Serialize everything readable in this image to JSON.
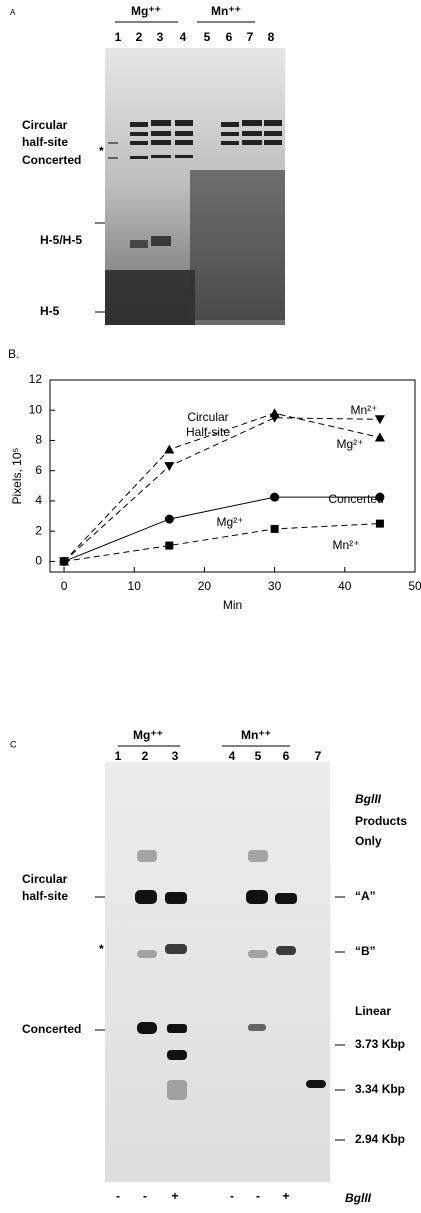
{
  "panel_a": {
    "label": "A",
    "groups": [
      "Mg⁺⁺",
      "Mn⁺⁺"
    ],
    "lanes": [
      "1",
      "2",
      "3",
      "4",
      "5",
      "6",
      "7",
      "8"
    ],
    "bands": [
      [
        "Circular",
        "half-site"
      ],
      [
        "Concerted"
      ],
      [
        "H-5/H-5"
      ],
      [
        "H-5"
      ]
    ],
    "star": "*"
  },
  "chart_data": {
    "type": "line",
    "panel_label": "B.",
    "x_label": "Min",
    "y_label": "Pixels, 10⁵",
    "x": [
      0,
      15,
      30,
      45
    ],
    "xlim": [
      -2,
      50
    ],
    "xticks": [
      0,
      10,
      20,
      30,
      40,
      50
    ],
    "ylim": [
      -0.7,
      12
    ],
    "yticks": [
      0,
      2,
      4,
      6,
      8,
      10,
      12
    ],
    "annotations": [
      "Circular",
      "Half-site",
      "Concerted"
    ],
    "series": [
      {
        "name": "Mg²⁺",
        "color": "#000000",
        "marker": "triangle-up",
        "dashed": true,
        "values": [
          0,
          7.4,
          9.8,
          8.2
        ]
      },
      {
        "name": "Mn²⁺",
        "color": "#000000",
        "marker": "triangle-down",
        "dashed": true,
        "values": [
          0,
          6.3,
          9.5,
          9.4
        ]
      },
      {
        "name": "Mg²⁺",
        "color": "#000000",
        "marker": "circle",
        "dashed": false,
        "values": [
          0,
          2.8,
          4.25,
          4.25
        ]
      },
      {
        "name": "Mn²⁺",
        "color": "#000000",
        "marker": "square",
        "dashed": true,
        "values": [
          0,
          1.05,
          2.15,
          2.5
        ]
      }
    ]
  },
  "panel_c": {
    "label": "C",
    "groups": [
      "Mg⁺⁺",
      "Mn⁺⁺"
    ],
    "lanes": [
      "1",
      "2",
      "3",
      "4",
      "5",
      "6",
      "7"
    ],
    "left_labels": [
      [
        "Circular",
        "half-site"
      ],
      [
        "*"
      ],
      [
        "Concerted"
      ]
    ],
    "right_labels": [
      "BglII",
      "Products",
      "Only",
      "“A”",
      "“B”",
      "Linear",
      "3.73 Kbp",
      "3.34 Kbp",
      "2.94 Kbp"
    ],
    "signs": [
      "-",
      "-",
      "+",
      "-",
      "-",
      "+"
    ],
    "enzyme": "BglII"
  }
}
